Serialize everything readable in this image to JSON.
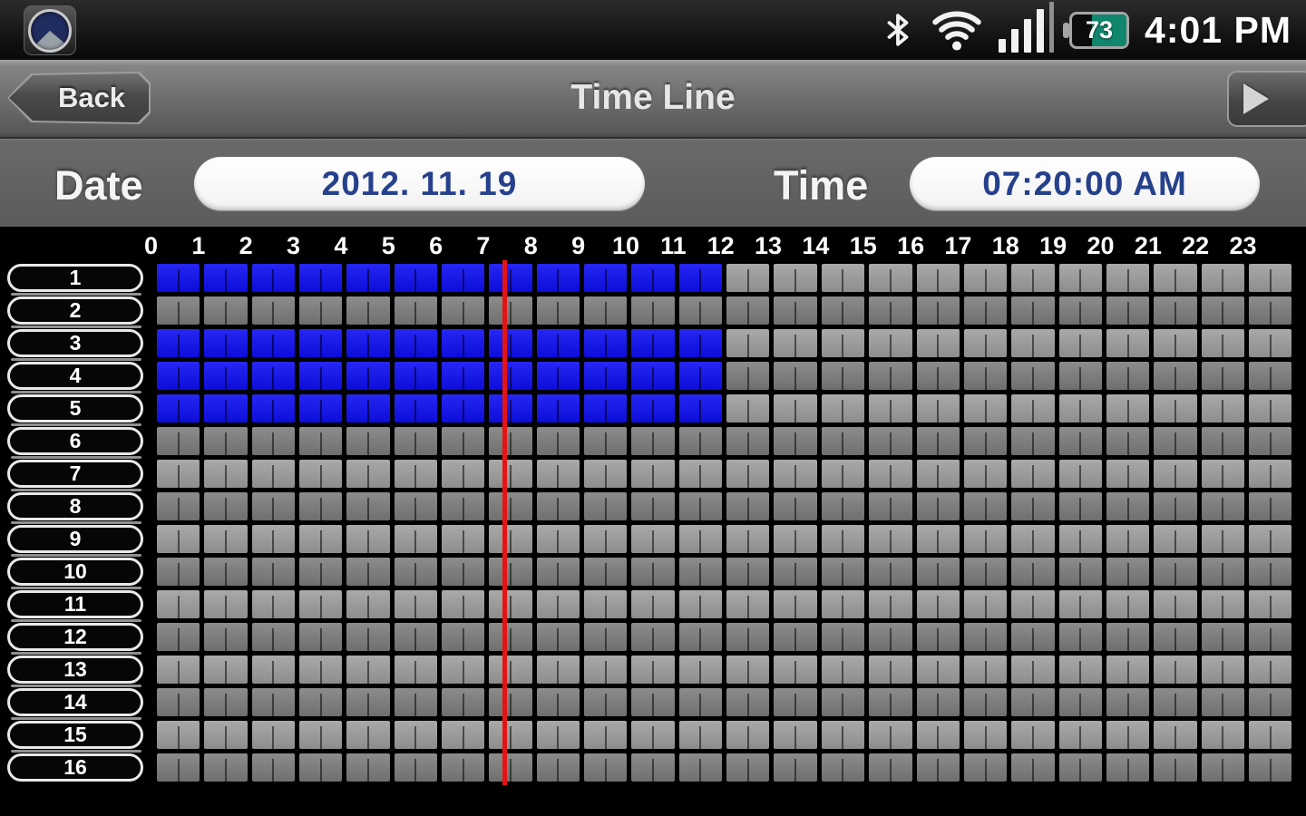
{
  "status_bar": {
    "time": "4:01 PM",
    "battery_percent": "73",
    "battery_fill_color": "#10866d",
    "signal_bars_active": 4,
    "signal_bars_total": 5
  },
  "nav_bar": {
    "back_label": "Back",
    "title": "Time Line"
  },
  "controls": {
    "date_label": "Date",
    "date_value": "2012. 11. 19",
    "time_label": "Time",
    "time_value": "07:20:00 AM",
    "value_text_color": "#25418c"
  },
  "timeline": {
    "hour_labels": [
      "0",
      "1",
      "2",
      "3",
      "4",
      "5",
      "6",
      "7",
      "8",
      "9",
      "10",
      "11",
      "12",
      "13",
      "14",
      "15",
      "16",
      "17",
      "18",
      "19",
      "20",
      "21",
      "22",
      "23"
    ],
    "segments_per_hour": 2,
    "channels": [
      {
        "label": "1",
        "recorded": [
          [
            0,
            12
          ]
        ]
      },
      {
        "label": "2",
        "recorded": []
      },
      {
        "label": "3",
        "recorded": [
          [
            0,
            12
          ]
        ]
      },
      {
        "label": "4",
        "recorded": [
          [
            0,
            12
          ]
        ]
      },
      {
        "label": "5",
        "recorded": [
          [
            0,
            12
          ]
        ]
      },
      {
        "label": "6",
        "recorded": []
      },
      {
        "label": "7",
        "recorded": []
      },
      {
        "label": "8",
        "recorded": []
      },
      {
        "label": "9",
        "recorded": []
      },
      {
        "label": "10",
        "recorded": []
      },
      {
        "label": "11",
        "recorded": []
      },
      {
        "label": "12",
        "recorded": []
      },
      {
        "label": "13",
        "recorded": []
      },
      {
        "label": "14",
        "recorded": []
      },
      {
        "label": "15",
        "recorded": []
      },
      {
        "label": "16",
        "recorded": []
      }
    ],
    "cursor": {
      "hour_position": 7.3333,
      "color": "#e51414"
    },
    "colors": {
      "recorded": "#1414e6",
      "idle_row_light": "#9d9d9d",
      "idle_row_dark": "#7a7a7a",
      "grid_background": "#000000"
    }
  }
}
